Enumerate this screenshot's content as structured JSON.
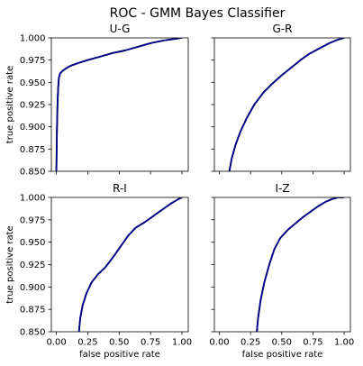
{
  "chart_data": {
    "type": "line",
    "title": "ROC - GMM Bayes Classifier",
    "xlabel": "false positive rate",
    "ylabel": "true positive rate",
    "xlim": [
      -0.04,
      1.05
    ],
    "ylim": [
      0.85,
      1.0
    ],
    "xticks": [
      "0.00",
      "0.25",
      "0.50",
      "0.75",
      "1.00"
    ],
    "yticks": [
      "0.850",
      "0.875",
      "0.900",
      "0.925",
      "0.950",
      "0.975",
      "1.000"
    ],
    "grid": false,
    "line_colors": [
      "#000000",
      "#00008b"
    ],
    "panels": [
      {
        "title": "U-G",
        "x": [
          0.0,
          0.005,
          0.01,
          0.015,
          0.02,
          0.03,
          0.05,
          0.08,
          0.12,
          0.18,
          0.25,
          0.35,
          0.45,
          0.55,
          0.65,
          0.75,
          0.85,
          0.95,
          1.0
        ],
        "y": [
          0.85,
          0.9,
          0.93,
          0.945,
          0.955,
          0.96,
          0.963,
          0.966,
          0.969,
          0.972,
          0.975,
          0.979,
          0.983,
          0.986,
          0.99,
          0.994,
          0.997,
          0.999,
          1.0
        ]
      },
      {
        "title": "G-R",
        "x": [
          0.08,
          0.1,
          0.13,
          0.17,
          0.22,
          0.28,
          0.35,
          0.42,
          0.5,
          0.58,
          0.65,
          0.72,
          0.8,
          0.88,
          0.95,
          1.0
        ],
        "y": [
          0.85,
          0.865,
          0.88,
          0.895,
          0.91,
          0.925,
          0.938,
          0.948,
          0.958,
          0.967,
          0.975,
          0.982,
          0.988,
          0.994,
          0.998,
          1.0
        ]
      },
      {
        "title": "R-I",
        "x": [
          0.18,
          0.19,
          0.21,
          0.24,
          0.28,
          0.33,
          0.39,
          0.45,
          0.51,
          0.57,
          0.63,
          0.7,
          0.77,
          0.84,
          0.91,
          0.97,
          1.0
        ],
        "y": [
          0.85,
          0.865,
          0.88,
          0.893,
          0.905,
          0.914,
          0.922,
          0.933,
          0.945,
          0.957,
          0.966,
          0.972,
          0.979,
          0.986,
          0.993,
          0.998,
          1.0
        ]
      },
      {
        "title": "I-Z",
        "x": [
          0.3,
          0.31,
          0.33,
          0.36,
          0.4,
          0.44,
          0.49,
          0.55,
          0.61,
          0.67,
          0.73,
          0.79,
          0.85,
          0.9,
          0.95,
          1.0
        ],
        "y": [
          0.85,
          0.865,
          0.885,
          0.905,
          0.925,
          0.942,
          0.955,
          0.964,
          0.971,
          0.978,
          0.984,
          0.99,
          0.995,
          0.998,
          1.0,
          1.0
        ]
      }
    ]
  }
}
